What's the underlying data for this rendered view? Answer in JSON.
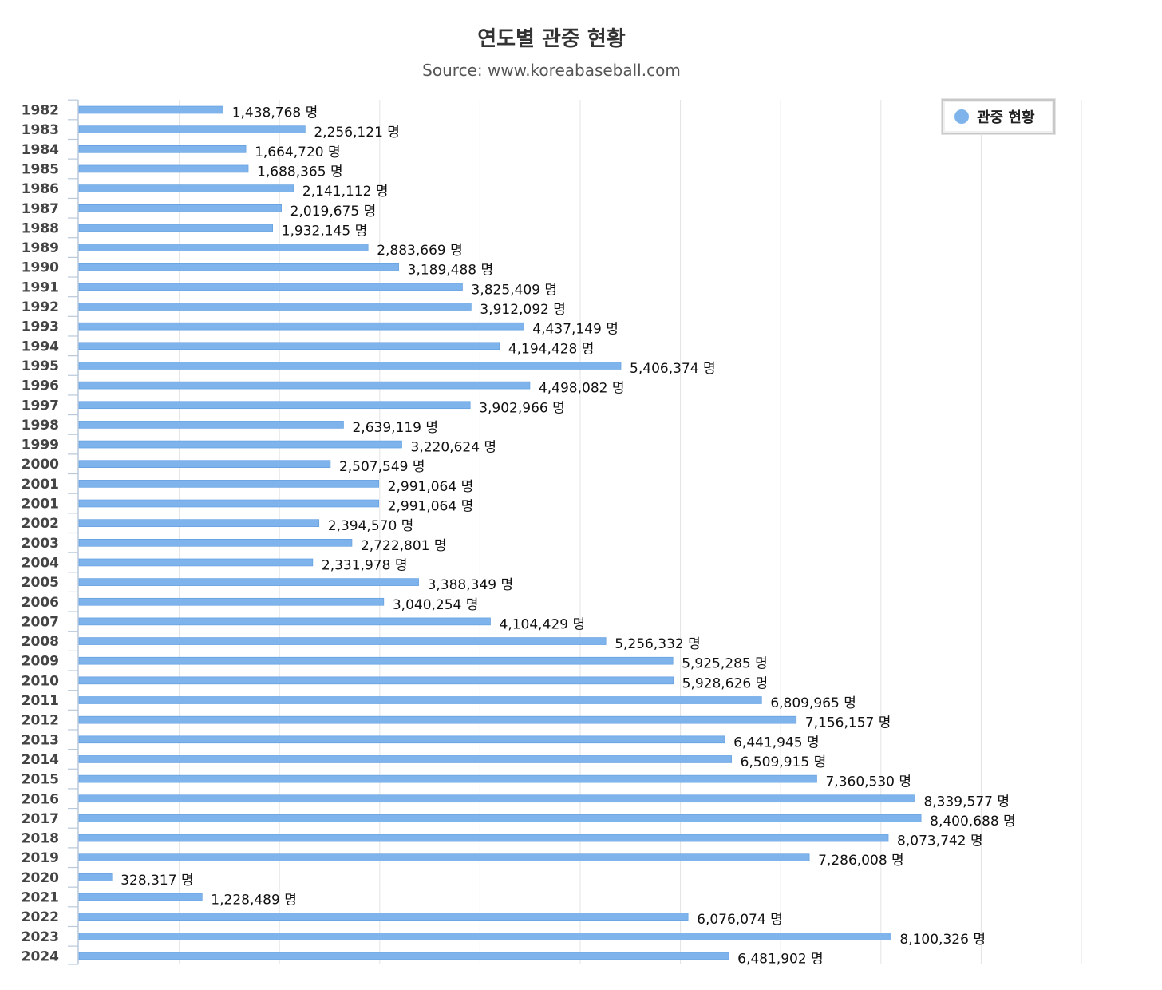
{
  "chart_data": {
    "type": "bar",
    "orientation": "horizontal",
    "title": "연도별 관중 현황",
    "subtitle": "Source: www.koreabaseball.com",
    "value_suffix": " 명",
    "legend": {
      "position": "top-right",
      "label": "관중 현황"
    },
    "grid": true,
    "xlim": [
      0,
      10000000
    ],
    "series_color": "#7EB3EB",
    "bar_border_color": "#5B9BDF",
    "categories": [
      "1982",
      "1983",
      "1984",
      "1985",
      "1986",
      "1987",
      "1988",
      "1989",
      "1990",
      "1991",
      "1992",
      "1993",
      "1994",
      "1995",
      "1996",
      "1997",
      "1998",
      "1999",
      "2000",
      "2001",
      "2001",
      "2002",
      "2003",
      "2004",
      "2005",
      "2006",
      "2007",
      "2008",
      "2009",
      "2010",
      "2011",
      "2012",
      "2013",
      "2014",
      "2015",
      "2016",
      "2017",
      "2018",
      "2019",
      "2020",
      "2021",
      "2022",
      "2023",
      "2024"
    ],
    "values": [
      1438768,
      2256121,
      1664720,
      1688365,
      2141112,
      2019675,
      1932145,
      2883669,
      3189488,
      3825409,
      3912092,
      4437149,
      4194428,
      5406374,
      4498082,
      3902966,
      2639119,
      3220624,
      2507549,
      2991064,
      2991064,
      2394570,
      2722801,
      2331978,
      3388349,
      3040254,
      4104429,
      5256332,
      5925285,
      5928626,
      6809965,
      7156157,
      6441945,
      6509915,
      7360530,
      8339577,
      8400688,
      8073742,
      7286008,
      328317,
      1228489,
      6076074,
      8100326,
      6481902
    ]
  }
}
